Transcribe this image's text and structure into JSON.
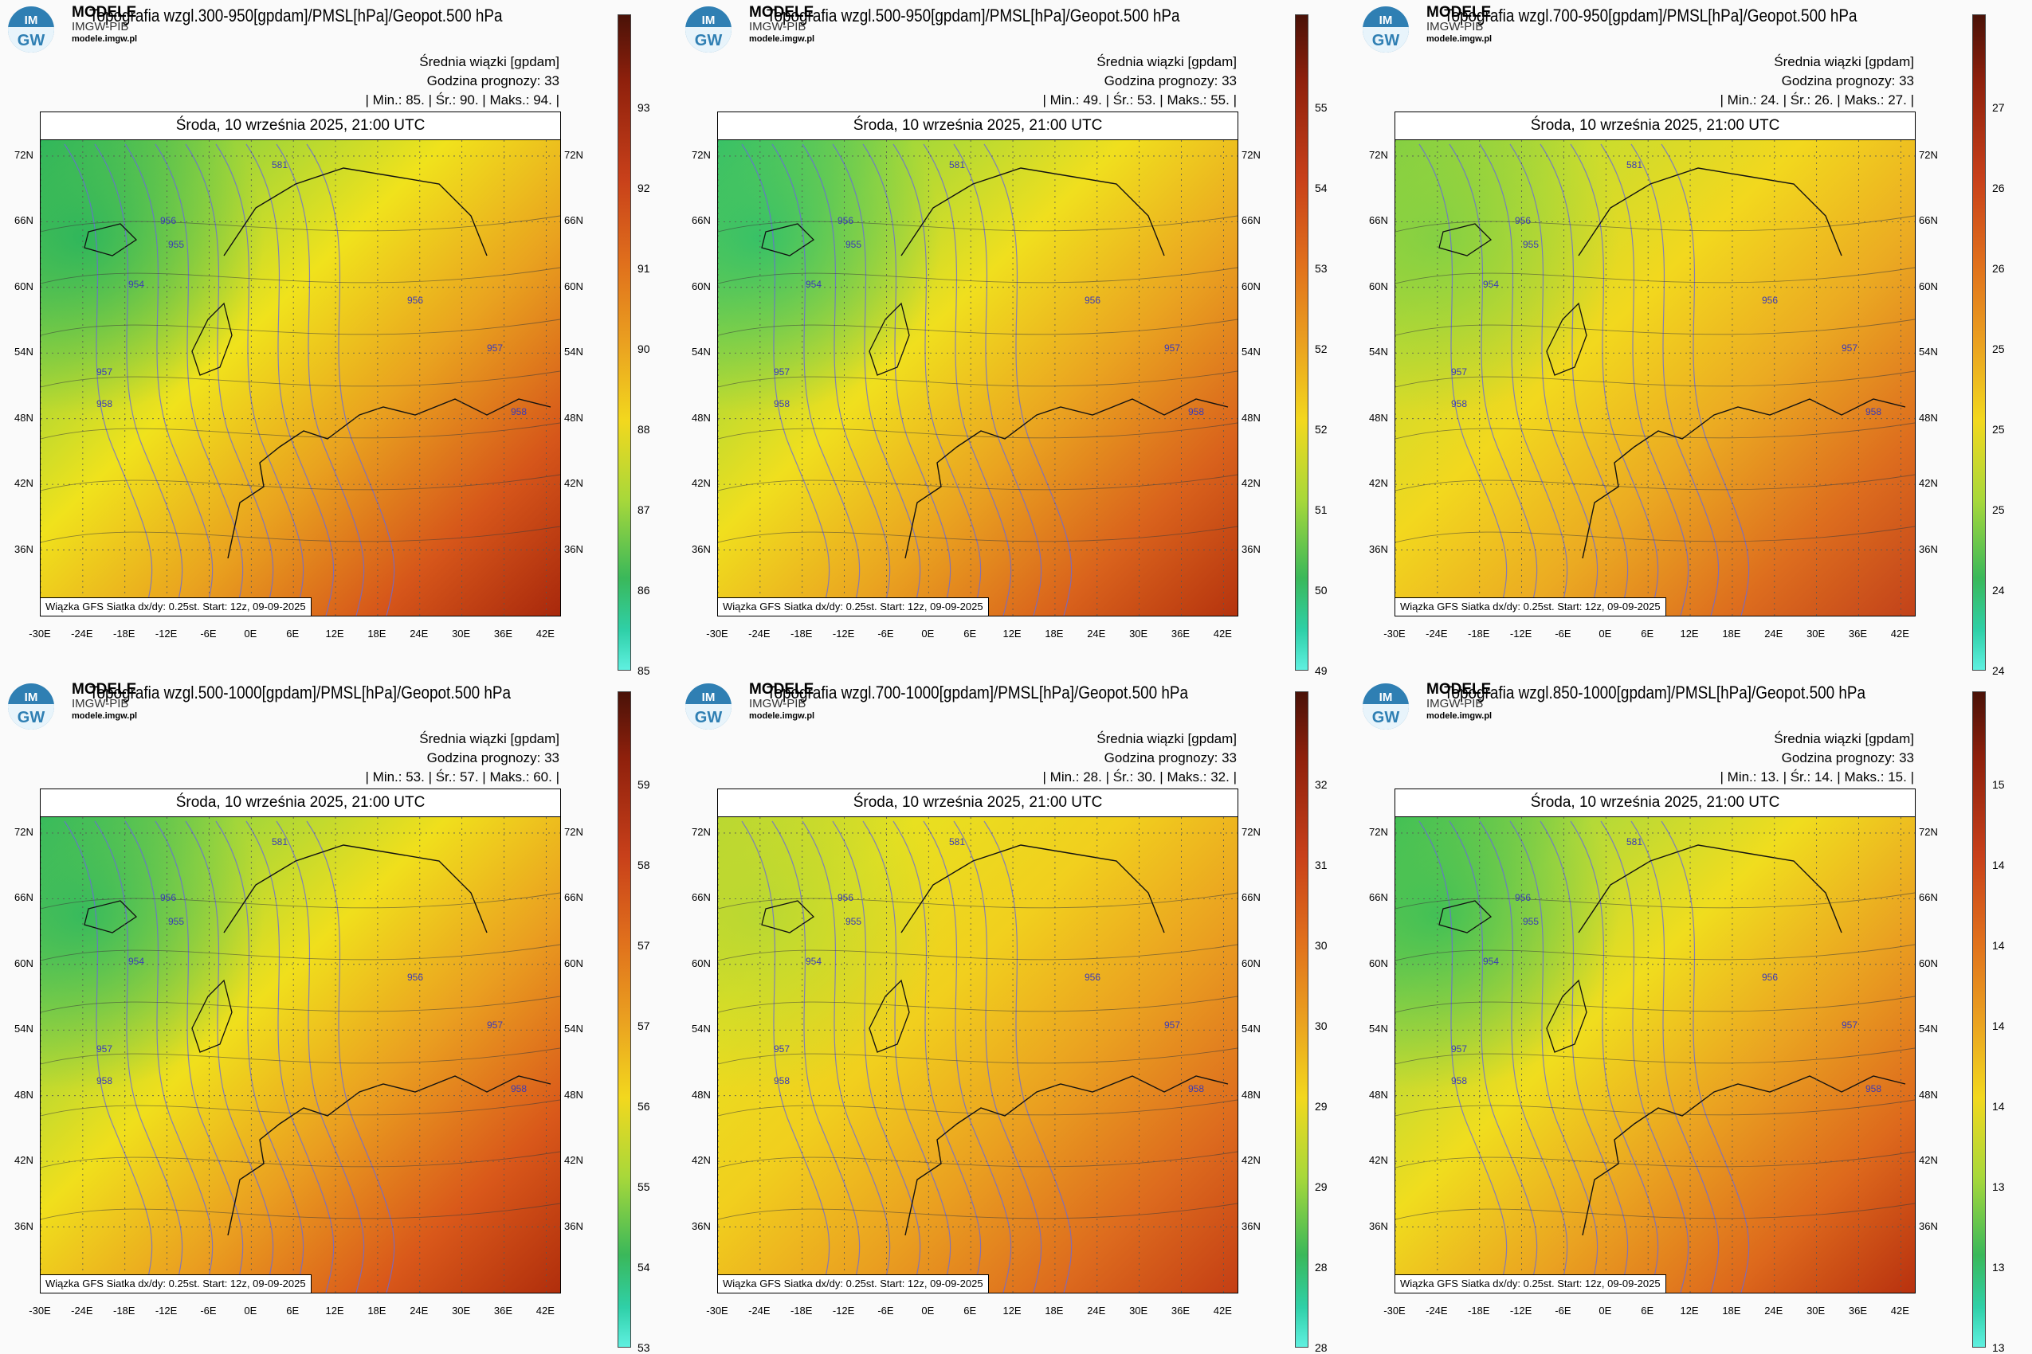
{
  "brand": {
    "line1": "MODELE",
    "line2": "IMGW-PIB",
    "url": "modele.imgw.pl",
    "logo_top": "IM",
    "logo_bottom": "GW"
  },
  "colors": {
    "green": "#2fb24a",
    "yellow": "#f2e21a",
    "orange": "#e8981e",
    "red": "#c83c12",
    "darkred": "#7a1a08"
  },
  "panels": [
    {
      "title": "Topografia wzgl.300-950[gpdam]/PMSL[hPa]/Geopot.500 hPa",
      "field": "Średnia wiązki [gpdam]",
      "forecast": "Godzina prognozy: 33",
      "stats": "| Min.:   85. | Śr.:   90. | Maks.:   94. |",
      "date": "Środa, 10 września 2025, 21:00 UTC",
      "footer": "Wiązka GFS Siatka dx/dy: 0.25st. Start: 12z, 09-09-2025",
      "scale": [
        "93",
        "92",
        "91",
        "90",
        "88",
        "87",
        "86",
        "85"
      ]
    },
    {
      "title": "Topografia wzgl.500-950[gpdam]/PMSL[hPa]/Geopot.500 hPa",
      "field": "Średnia wiązki [gpdam]",
      "forecast": "Godzina prognozy: 33",
      "stats": "| Min.:   49. | Śr.:   53. | Maks.:   55. |",
      "date": "Środa, 10 września 2025, 21:00 UTC",
      "footer": "Wiązka GFS Siatka dx/dy: 0.25st. Start: 12z, 09-09-2025",
      "scale": [
        "55",
        "54",
        "53",
        "52",
        "52",
        "51",
        "50",
        "49"
      ]
    },
    {
      "title": "Topografia wzgl.700-950[gpdam]/PMSL[hPa]/Geopot.500 hPa",
      "field": "Średnia wiązki [gpdam]",
      "forecast": "Godzina prognozy: 33",
      "stats": "| Min.:   24. | Śr.:   26. | Maks.:   27. |",
      "date": "Środa, 10 września 2025, 21:00 UTC",
      "footer": "Wiązka GFS Siatka dx/dy: 0.25st. Start: 12z, 09-09-2025",
      "scale": [
        "27",
        "26",
        "26",
        "25",
        "25",
        "25",
        "24",
        "24"
      ]
    },
    {
      "title": "Topografia wzgl.500-1000[gpdam]/PMSL[hPa]/Geopot.500 hPa",
      "field": "Średnia wiązki [gpdam]",
      "forecast": "Godzina prognozy: 33",
      "stats": "| Min.:   53. | Śr.:   57. | Maks.:   60. |",
      "date": "Środa, 10 września 2025, 21:00 UTC",
      "footer": "Wiązka GFS Siatka dx/dy: 0.25st. Start: 12z, 09-09-2025",
      "scale": [
        "59",
        "58",
        "57",
        "57",
        "56",
        "55",
        "54",
        "53"
      ]
    },
    {
      "title": "Topografia wzgl.700-1000[gpdam]/PMSL[hPa]/Geopot.500 hPa",
      "field": "Średnia wiązki [gpdam]",
      "forecast": "Godzina prognozy: 33",
      "stats": "| Min.:   28. | Śr.:   30. | Maks.:   32. |",
      "date": "Środa, 10 września 2025, 21:00 UTC",
      "footer": "Wiązka GFS Siatka dx/dy: 0.25st. Start: 12z, 09-09-2025",
      "scale": [
        "32",
        "31",
        "30",
        "30",
        "29",
        "29",
        "28",
        "28"
      ]
    },
    {
      "title": "Topografia wzgl.850-1000[gpdam]/PMSL[hPa]/Geopot.500 hPa",
      "field": "Średnia wiązki [gpdam]",
      "forecast": "Godzina prognozy: 33",
      "stats": "| Min.:   13. | Śr.:   14. | Maks.:   15. |",
      "date": "Środa, 10 września 2025, 21:00 UTC",
      "footer": "Wiązka GFS Siatka dx/dy: 0.25st. Start: 12z, 09-09-2025",
      "scale": [
        "15",
        "14",
        "14",
        "14",
        "14",
        "13",
        "13",
        "13"
      ]
    }
  ],
  "lat_labels": [
    "72N",
    "66N",
    "60N",
    "54N",
    "48N",
    "42N",
    "36N"
  ],
  "lon_labels": [
    "-30E",
    "-24E",
    "-18E",
    "-12E",
    "-6E",
    "0E",
    "6E",
    "12E",
    "18E",
    "24E",
    "30E",
    "36E",
    "42E"
  ],
  "contour_labels": [
    "956",
    "955",
    "954",
    "957",
    "958",
    "581",
    "956",
    "957",
    "958"
  ]
}
